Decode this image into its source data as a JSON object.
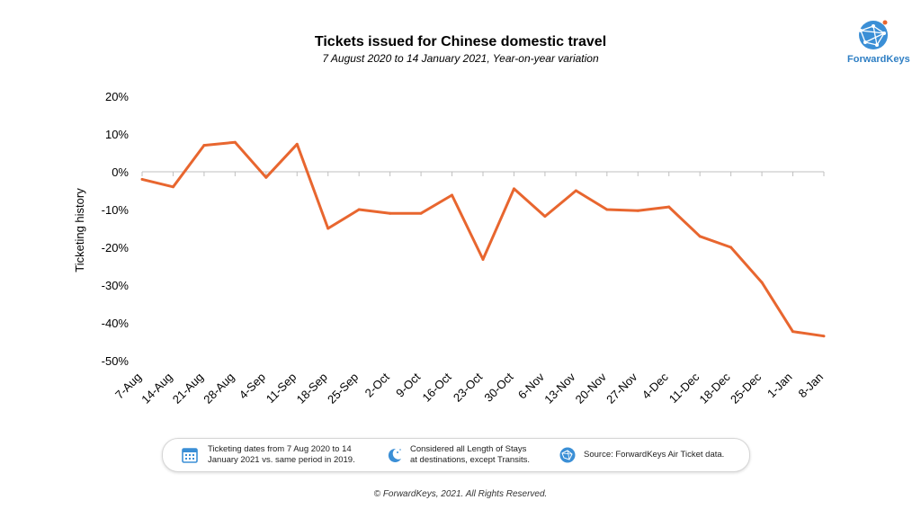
{
  "chart_data": {
    "type": "line",
    "title": "Tickets issued for Chinese domestic travel",
    "subtitle": "7 August 2020 to 14 January 2021, Year-on-year variation",
    "ylabel": "Ticketing history",
    "xlabel": "",
    "ylim": [
      -50,
      20
    ],
    "y_ticks": [
      "20%",
      "10%",
      "0%",
      "-10%",
      "-20%",
      "-30%",
      "-40%",
      "-50%"
    ],
    "categories": [
      "7-Aug",
      "14-Aug",
      "21-Aug",
      "28-Aug",
      "4-Sep",
      "11-Sep",
      "18-Sep",
      "25-Sep",
      "2-Oct",
      "9-Oct",
      "16-Oct",
      "23-Oct",
      "30-Oct",
      "6-Nov",
      "13-Nov",
      "20-Nov",
      "27-Nov",
      "4-Dec",
      "11-Dec",
      "18-Dec",
      "25-Dec",
      "1-Jan",
      "8-Jan"
    ],
    "values": [
      -2,
      -4,
      7,
      7.8,
      -1.5,
      7.3,
      -15,
      -10,
      -11,
      -11,
      -6.2,
      -23.2,
      -4.5,
      -11.8,
      -5,
      -10,
      -10.3,
      -9.3,
      -17.1,
      -20,
      -29.3,
      -42.3,
      -43.5
    ],
    "grid": false,
    "color": "#e8662f"
  },
  "brand": {
    "logo_text": "ForwardKeys",
    "logo_icon": "globe-icon"
  },
  "legend": [
    {
      "icon": "calendar-icon",
      "line1": "Ticketing dates from 7 Aug 2020 to 14",
      "line2": "January 2021 vs. same period in 2019."
    },
    {
      "icon": "moon-stars-icon",
      "line1": "Considered all Length of Stays",
      "line2": "at destinations, except Transits."
    },
    {
      "icon": "globe-icon",
      "line1": "Source: ForwardKeys Air Ticket data.",
      "line2": ""
    }
  ],
  "footer": "© ForwardKeys, 2021. All Rights Reserved."
}
